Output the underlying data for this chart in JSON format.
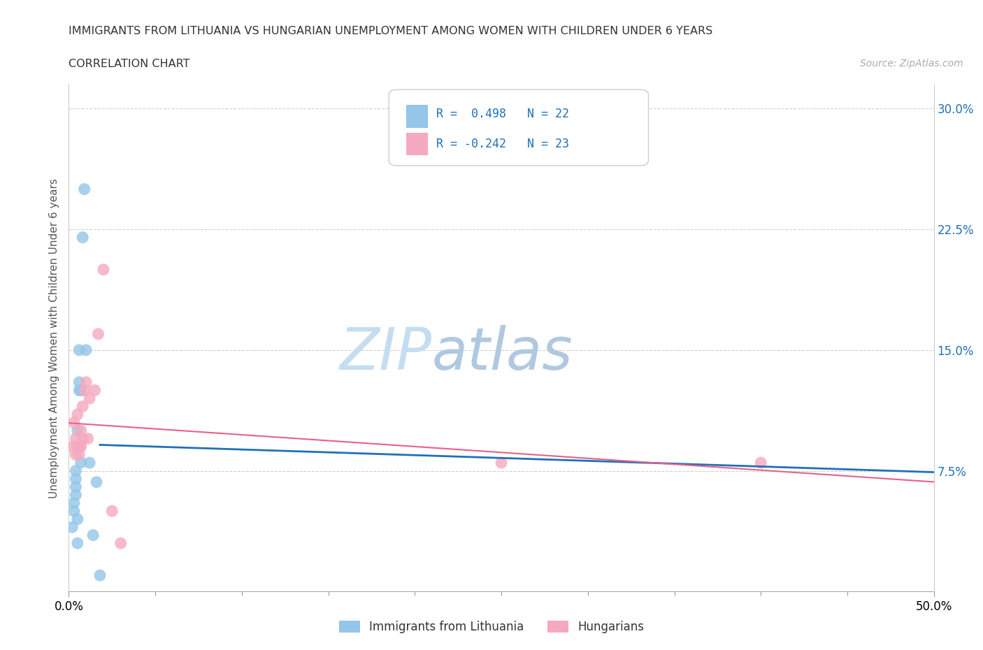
{
  "title_line1": "IMMIGRANTS FROM LITHUANIA VS HUNGARIAN UNEMPLOYMENT AMONG WOMEN WITH CHILDREN UNDER 6 YEARS",
  "title_line2": "CORRELATION CHART",
  "source_text": "Source: ZipAtlas.com",
  "ylabel": "Unemployment Among Women with Children Under 6 years",
  "xlim": [
    0.0,
    0.5
  ],
  "ylim": [
    0.0,
    0.315
  ],
  "xtick_positions": [
    0.0,
    0.5
  ],
  "xtick_labels": [
    "0.0%",
    "50.0%"
  ],
  "xtick_minor_positions": [
    0.05,
    0.1,
    0.15,
    0.2,
    0.25,
    0.3,
    0.35,
    0.4,
    0.45
  ],
  "yticks_right": [
    0.075,
    0.15,
    0.225,
    0.3
  ],
  "ytick_labels_right": [
    "7.5%",
    "15.0%",
    "22.5%",
    "30.0%"
  ],
  "blue_color": "#93c6e8",
  "pink_color": "#f4a9be",
  "blue_line_color": "#2171b5",
  "pink_line_color": "#e8608a",
  "blue_scatter_x": [
    0.002,
    0.003,
    0.003,
    0.004,
    0.004,
    0.004,
    0.004,
    0.005,
    0.005,
    0.005,
    0.006,
    0.006,
    0.006,
    0.007,
    0.007,
    0.008,
    0.009,
    0.01,
    0.012,
    0.014,
    0.016,
    0.018
  ],
  "blue_scatter_y": [
    0.04,
    0.05,
    0.055,
    0.06,
    0.065,
    0.07,
    0.075,
    0.03,
    0.045,
    0.1,
    0.125,
    0.13,
    0.15,
    0.08,
    0.125,
    0.22,
    0.25,
    0.15,
    0.08,
    0.035,
    0.068,
    0.01
  ],
  "pink_scatter_x": [
    0.002,
    0.003,
    0.004,
    0.004,
    0.005,
    0.005,
    0.006,
    0.006,
    0.007,
    0.007,
    0.008,
    0.008,
    0.009,
    0.01,
    0.011,
    0.012,
    0.015,
    0.017,
    0.02,
    0.025,
    0.03,
    0.25,
    0.4
  ],
  "pink_scatter_y": [
    0.09,
    0.105,
    0.085,
    0.095,
    0.09,
    0.11,
    0.085,
    0.09,
    0.09,
    0.1,
    0.095,
    0.115,
    0.125,
    0.13,
    0.095,
    0.12,
    0.125,
    0.16,
    0.2,
    0.05,
    0.03,
    0.08,
    0.08
  ],
  "watermark_zip": "ZIP",
  "watermark_atlas": "atlas",
  "watermark_color_zip": "#c8ddf0",
  "watermark_color_atlas": "#b8cce0",
  "background_color": "#ffffff",
  "grid_color": "#d0d0d0",
  "grid_style": "--"
}
